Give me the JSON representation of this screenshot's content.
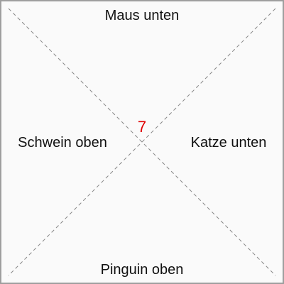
{
  "labels": {
    "top": "Maus unten",
    "left": "Schwein oben",
    "right": "Katze unten",
    "bottom": "Pinguin oben"
  },
  "center": {
    "value": "7",
    "color": "#e00000"
  },
  "colors": {
    "background": "#fafafa",
    "border": "#9e9e9e",
    "diagonal": "#888888",
    "text": "#111111"
  }
}
